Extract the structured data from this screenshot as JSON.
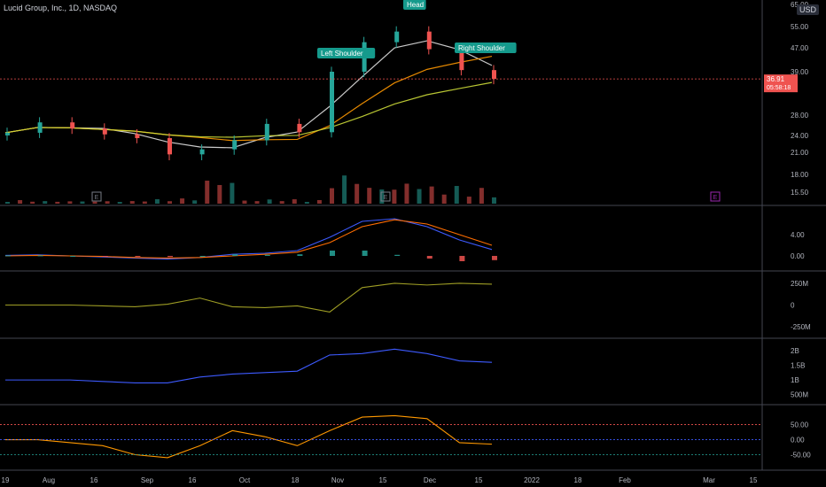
{
  "header": {
    "title": "Lucid Group, Inc., 1D, NASDAQ",
    "currency": "USD"
  },
  "price_tag": {
    "price": "36.91",
    "countdown": "05:58:18"
  },
  "annotations": {
    "head": "Head",
    "left_shoulder": "Left Shoulder",
    "right_shoulder": "Right Shoulder",
    "earnings_marker": "E"
  },
  "colors": {
    "bg": "#000000",
    "up": "#26a69a",
    "down": "#ef5350",
    "label_bg": "#159a8c",
    "price_line": "#ef5350",
    "macd": "#3d5afe",
    "signal": "#ff6d00",
    "ad_line": "#9e9d24",
    "obv": "#3d5afe",
    "grid": "#1e1e1e",
    "earnings_past": "#787b86",
    "earnings_next": "#9c27b0"
  },
  "chart_data": [
    {
      "type": "line",
      "title": "Lucid Group, Inc., 1D, NASDAQ",
      "panel": "price",
      "y_ticks": [
        "65.00",
        "55.00",
        "47.00",
        "39.00",
        "28.00",
        "24.00",
        "21.00",
        "18.00",
        "15.50"
      ],
      "x_ticks": [
        "19",
        "Aug",
        "16",
        "Sep",
        "16",
        "Oct",
        "18",
        "Nov",
        "15",
        "Dec",
        "15",
        "2022",
        "18",
        "Feb",
        "Mar",
        "15"
      ],
      "x": [
        "Jul 19",
        "Jul 29",
        "Aug 9",
        "Aug 19",
        "Aug 30",
        "Sep 9",
        "Sep 20",
        "Sep 30",
        "Oct 11",
        "Oct 21",
        "Nov 1",
        "Nov 11",
        "Nov 22",
        "Dec 2",
        "Dec 13",
        "Dec 20"
      ],
      "series": [
        {
          "values": [
            24.5,
            26.5,
            25.3,
            24.2,
            23.5,
            20.7,
            21.5,
            23.1,
            26.2,
            24.6,
            39.0,
            49.0,
            53.0,
            46.5,
            39.5,
            36.91
          ]
        }
      ],
      "last_price": 36.91
    },
    {
      "type": "bar",
      "panel": "macd",
      "y_ticks": [
        "4.00",
        "0.00"
      ],
      "series": [
        {
          "name": "MACD",
          "values": [
            0.1,
            0.2,
            0.0,
            -0.2,
            -0.4,
            -0.6,
            -0.3,
            0.3,
            0.5,
            1.0,
            3.5,
            6.5,
            7.0,
            5.5,
            3.0,
            1.2
          ]
        },
        {
          "name": "Signal",
          "values": [
            0.0,
            0.1,
            0.0,
            -0.1,
            -0.3,
            -0.4,
            -0.3,
            0.0,
            0.3,
            0.7,
            2.5,
            5.5,
            6.8,
            6.0,
            4.0,
            2.0
          ]
        }
      ]
    },
    {
      "type": "line",
      "panel": "accumulation_distribution",
      "y_ticks": [
        "250M",
        "0",
        "-250M"
      ],
      "series": [
        {
          "values": [
            0,
            0,
            0,
            -10,
            -20,
            10,
            80,
            -20,
            -30,
            -10,
            -80,
            200,
            250,
            230,
            250,
            240
          ]
        }
      ]
    },
    {
      "type": "line",
      "panel": "on_balance_volume",
      "y_ticks": [
        "2B",
        "1.5B",
        "1B",
        "500M"
      ],
      "series": [
        {
          "values": [
            1.0,
            1.0,
            1.0,
            0.95,
            0.9,
            0.9,
            1.1,
            1.2,
            1.25,
            1.3,
            1.85,
            1.9,
            2.05,
            1.9,
            1.65,
            1.6
          ]
        }
      ]
    },
    {
      "type": "line",
      "panel": "oscillator",
      "y_ticks": [
        "50.00",
        "0.00",
        "-50.00"
      ],
      "series": [
        {
          "values": [
            0,
            0,
            -10,
            -20,
            -50,
            -60,
            -20,
            30,
            10,
            -20,
            30,
            75,
            80,
            70,
            -10,
            -15
          ]
        }
      ]
    }
  ]
}
